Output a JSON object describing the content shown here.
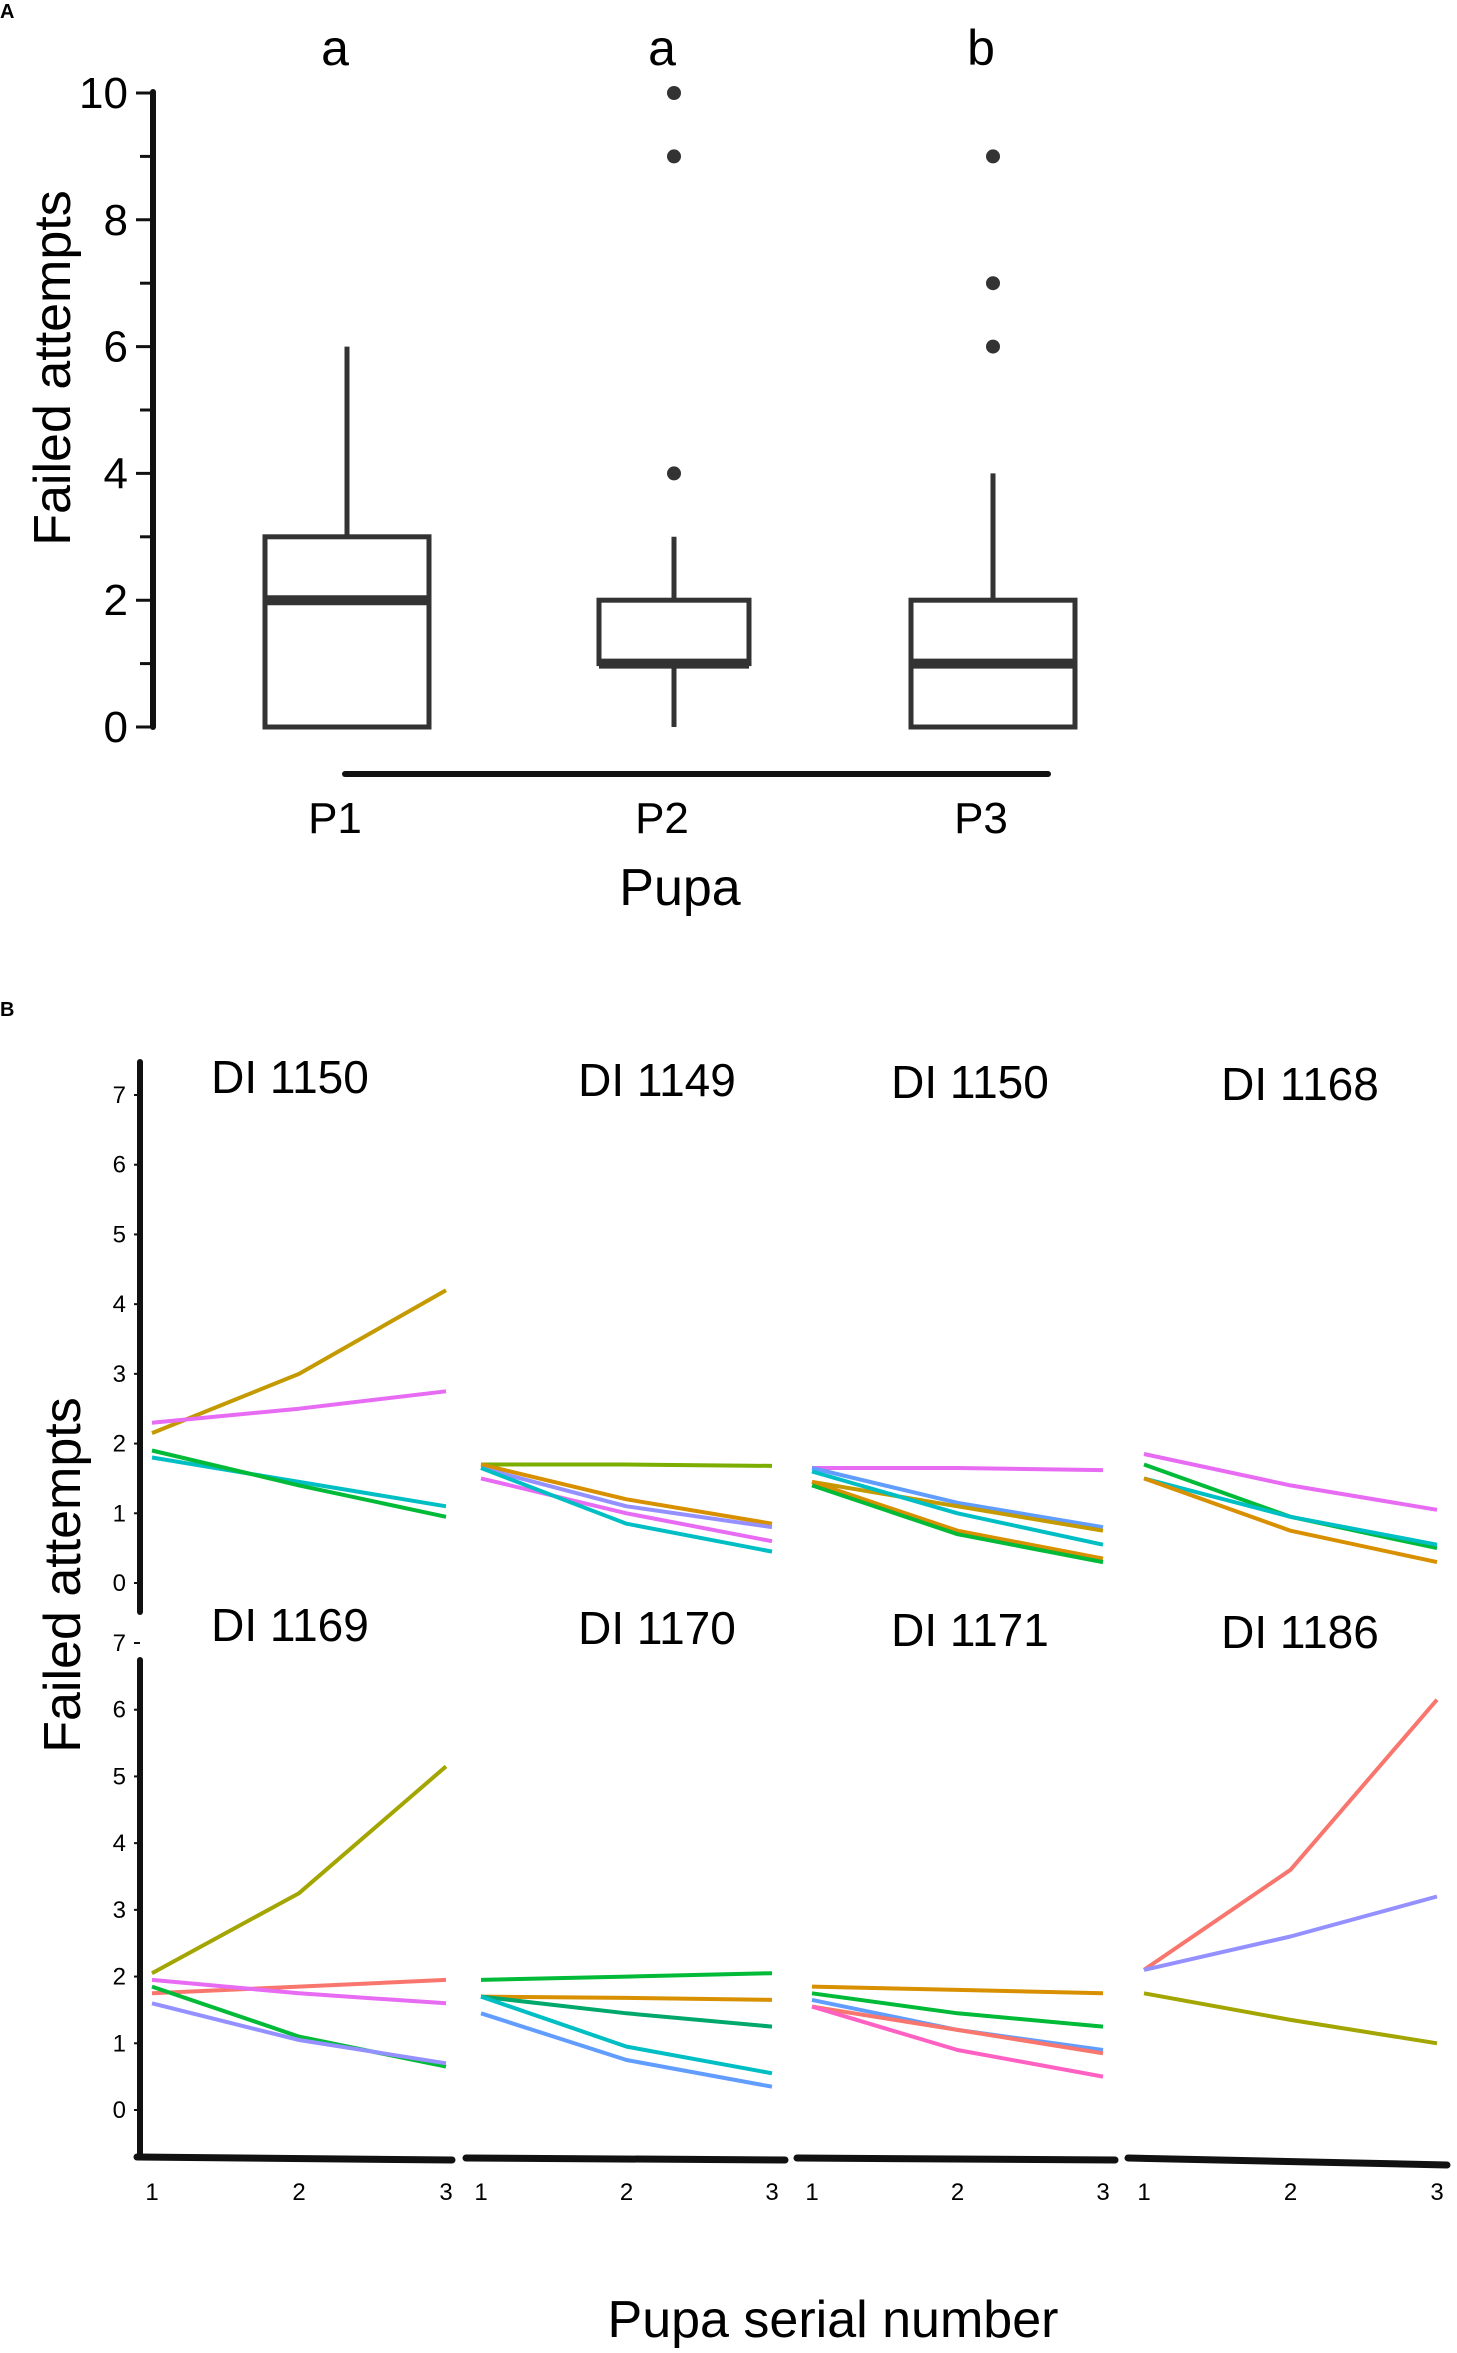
{
  "panel_a": {
    "label": "A",
    "chart_data": {
      "type": "box",
      "title": "",
      "xlabel": "Pupa",
      "ylabel": "Failed attempts",
      "ylim": [
        0,
        10
      ],
      "yticks": [
        "0",
        "2",
        "4",
        "6",
        "8",
        "10"
      ],
      "categories": [
        "P1",
        "P2",
        "P3"
      ],
      "significance": [
        "a",
        "a",
        "b"
      ],
      "boxes": [
        {
          "name": "P1",
          "min": 0,
          "q1": 0,
          "median": 2,
          "q3": 3,
          "max": 6,
          "outliers": []
        },
        {
          "name": "P2",
          "min": 0,
          "q1": 1,
          "median": 1,
          "q3": 2,
          "max": 3,
          "outliers": [
            4,
            9,
            10
          ]
        },
        {
          "name": "P3",
          "min": 0,
          "q1": 0,
          "median": 1,
          "q3": 2,
          "max": 4,
          "outliers": [
            6,
            7,
            9
          ]
        }
      ]
    }
  },
  "panel_b": {
    "label": "B",
    "chart_data": {
      "type": "line",
      "xlabel": "Pupa serial number",
      "ylabel": "Failed attempts",
      "x": [
        1,
        2,
        3
      ],
      "xticks": [
        "1",
        "2",
        "3"
      ],
      "ylim": [
        0,
        7
      ],
      "yticks": [
        "0",
        "1",
        "2",
        "3",
        "4",
        "5",
        "6",
        "7"
      ],
      "facets": [
        {
          "title": "DI 1150",
          "series": [
            {
              "color": "#C49A00",
              "values": [
                2.15,
                3.0,
                4.2
              ]
            },
            {
              "color": "#E76BF3",
              "values": [
                2.3,
                2.5,
                2.75
              ]
            },
            {
              "color": "#00BFC4",
              "values": [
                1.8,
                1.45,
                1.1
              ]
            },
            {
              "color": "#00BA38",
              "values": [
                1.9,
                1.4,
                0.95
              ]
            }
          ]
        },
        {
          "title": "DI 1149",
          "series": [
            {
              "color": "#7CAE00",
              "values": [
                1.7,
                1.7,
                1.68
              ]
            },
            {
              "color": "#D89000",
              "values": [
                1.7,
                1.2,
                0.85
              ]
            },
            {
              "color": "#9590FF",
              "values": [
                1.65,
                1.1,
                0.8
              ]
            },
            {
              "color": "#E76BF3",
              "values": [
                1.5,
                1.0,
                0.6
              ]
            },
            {
              "color": "#00BFC4",
              "values": [
                1.65,
                0.85,
                0.45
              ]
            }
          ]
        },
        {
          "title": "DI 1150",
          "series": [
            {
              "color": "#E76BF3",
              "values": [
                1.65,
                1.65,
                1.62
              ]
            },
            {
              "color": "#619CFF",
              "values": [
                1.65,
                1.15,
                0.8
              ]
            },
            {
              "color": "#C49A00",
              "values": [
                1.45,
                1.1,
                0.75
              ]
            },
            {
              "color": "#00BFC4",
              "values": [
                1.6,
                1.0,
                0.55
              ]
            },
            {
              "color": "#D89000",
              "values": [
                1.45,
                0.75,
                0.35
              ]
            },
            {
              "color": "#00BA38",
              "values": [
                1.4,
                0.7,
                0.3
              ]
            }
          ]
        },
        {
          "title": "DI 1168",
          "series": [
            {
              "color": "#E76BF3",
              "values": [
                1.85,
                1.4,
                1.05
              ]
            },
            {
              "color": "#00BA38",
              "values": [
                1.7,
                0.95,
                0.5
              ]
            },
            {
              "color": "#00BFC4",
              "values": [
                1.5,
                0.95,
                0.55
              ]
            },
            {
              "color": "#D89000",
              "values": [
                1.5,
                0.75,
                0.3
              ]
            }
          ]
        },
        {
          "title": "DI 1169",
          "series": [
            {
              "color": "#A3A500",
              "values": [
                2.05,
                3.25,
                5.15
              ]
            },
            {
              "color": "#F8766D",
              "values": [
                1.75,
                1.85,
                1.95
              ]
            },
            {
              "color": "#E76BF3",
              "values": [
                1.95,
                1.75,
                1.6
              ]
            },
            {
              "color": "#00BA38",
              "values": [
                1.85,
                1.1,
                0.65
              ]
            },
            {
              "color": "#9590FF",
              "values": [
                1.6,
                1.05,
                0.7
              ]
            }
          ]
        },
        {
          "title": "DI 1170",
          "series": [
            {
              "color": "#00BA38",
              "values": [
                1.95,
                2.0,
                2.05
              ]
            },
            {
              "color": "#D89000",
              "values": [
                1.7,
                1.68,
                1.65
              ]
            },
            {
              "color": "#00A86B",
              "values": [
                1.7,
                1.45,
                1.25
              ]
            },
            {
              "color": "#00BFC4",
              "values": [
                1.7,
                0.95,
                0.55
              ]
            },
            {
              "color": "#619CFF",
              "values": [
                1.45,
                0.75,
                0.35
              ]
            }
          ]
        },
        {
          "title": "DI 1171",
          "series": [
            {
              "color": "#D89000",
              "values": [
                1.85,
                1.8,
                1.75
              ]
            },
            {
              "color": "#00BA38",
              "values": [
                1.75,
                1.45,
                1.25
              ]
            },
            {
              "color": "#619CFF",
              "values": [
                1.65,
                1.2,
                0.9
              ]
            },
            {
              "color": "#F8766D",
              "values": [
                1.55,
                1.2,
                0.85
              ]
            },
            {
              "color": "#FF61C3",
              "values": [
                1.55,
                0.9,
                0.5
              ]
            }
          ]
        },
        {
          "title": "DI 1186",
          "series": [
            {
              "color": "#F8766D",
              "values": [
                2.1,
                3.6,
                6.15
              ]
            },
            {
              "color": "#9590FF",
              "values": [
                2.1,
                2.6,
                3.2
              ]
            },
            {
              "color": "#A3A500",
              "values": [
                1.75,
                1.35,
                1.0
              ]
            }
          ]
        }
      ]
    }
  }
}
